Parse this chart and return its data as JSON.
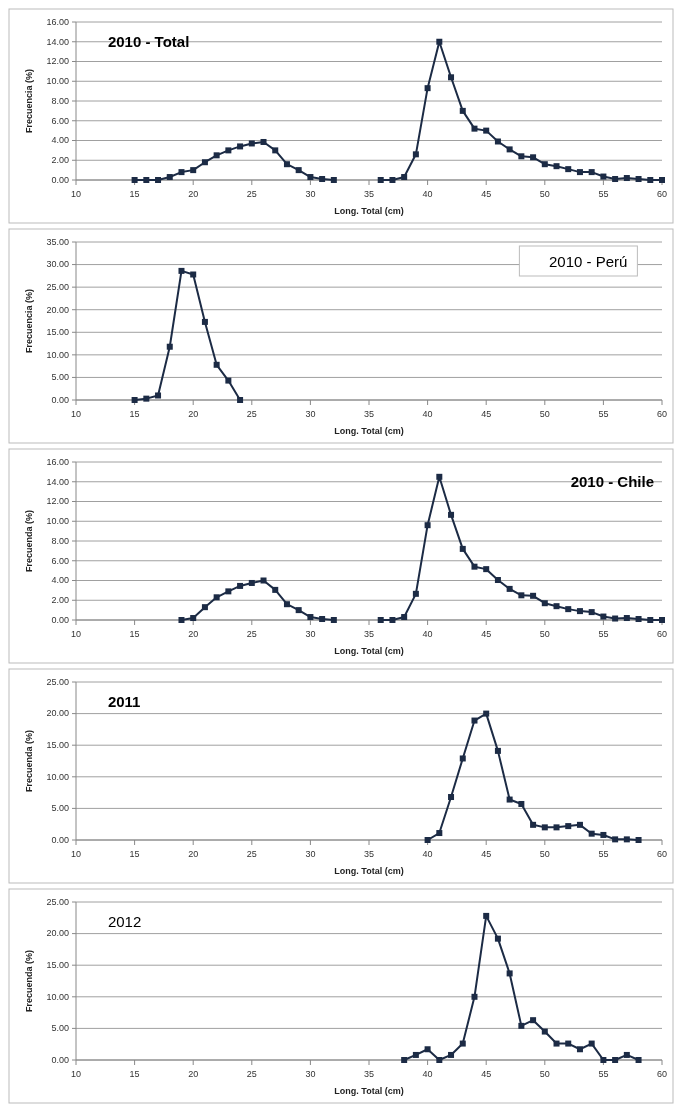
{
  "chart_data": [
    {
      "type": "line",
      "title": "2010 - Total",
      "xlabel": "Long. Total (cm)",
      "ylabel": "Frecuencia (%)",
      "xlim": [
        10,
        60
      ],
      "xticks": [
        10,
        15,
        20,
        25,
        30,
        35,
        40,
        45,
        50,
        55,
        60
      ],
      "ylim": [
        0,
        16
      ],
      "yticks": [
        {
          "value": 0,
          "label": "0.00"
        },
        {
          "value": 2,
          "label": "2.00"
        },
        {
          "value": 4,
          "label": "4.00"
        },
        {
          "value": 6,
          "label": "6.00"
        },
        {
          "value": 8,
          "label": "8.00"
        },
        {
          "value": 10,
          "label": "10.00"
        },
        {
          "value": 12,
          "label": "12.00"
        },
        {
          "value": 14,
          "label": "14.00"
        },
        {
          "value": 16,
          "label": "16.00"
        }
      ],
      "grid": "y",
      "legend": false,
      "marker": "square",
      "line_style": "solid",
      "series": [
        {
          "color": "#1c2b45",
          "x": [
            15,
            16,
            17,
            18,
            19,
            20,
            21,
            22,
            23,
            24,
            25,
            26,
            27,
            28,
            29,
            30,
            31,
            32,
            33,
            34,
            35,
            36,
            37,
            38,
            39,
            40,
            41,
            42,
            43,
            44,
            45,
            46,
            47,
            48,
            49,
            50,
            51,
            52,
            53,
            54,
            55,
            56,
            57,
            58,
            59,
            60
          ],
          "values": [
            0,
            0,
            0,
            0.3,
            0.8,
            1.0,
            1.8,
            2.5,
            3.0,
            3.4,
            3.7,
            3.85,
            3.0,
            1.6,
            1.0,
            0.3,
            0.1,
            0,
            null,
            null,
            null,
            0,
            0,
            0.3,
            2.6,
            9.3,
            14.0,
            10.4,
            7.0,
            5.2,
            5.0,
            3.9,
            3.1,
            2.4,
            2.3,
            1.6,
            1.4,
            1.1,
            0.8,
            0.8,
            0.35,
            0.1,
            0.2,
            0.1,
            0,
            0
          ]
        }
      ]
    },
    {
      "type": "line",
      "title": "2010 - Perú",
      "xlabel": "Long. Total (cm)",
      "ylabel": "Frecuencia (%)",
      "xlim": [
        10,
        60
      ],
      "xticks": [
        10,
        15,
        20,
        25,
        30,
        35,
        40,
        45,
        50,
        55,
        60
      ],
      "ylim": [
        0,
        35
      ],
      "yticks": [
        {
          "value": 0,
          "label": "0.00"
        },
        {
          "value": 5,
          "label": "5.00"
        },
        {
          "value": 10,
          "label": "10.00"
        },
        {
          "value": 15,
          "label": "15.00"
        },
        {
          "value": 20,
          "label": "20.00"
        },
        {
          "value": 25,
          "label": "25.00"
        },
        {
          "value": 30,
          "label": "30.00"
        },
        {
          "value": 35,
          "label": "35.00"
        }
      ],
      "grid": "y",
      "legend": false,
      "marker": "square",
      "line_style": "solid",
      "series": [
        {
          "color": "#1c2b45",
          "x": [
            15,
            16,
            17,
            18,
            19,
            20,
            21,
            22,
            23,
            24
          ],
          "values": [
            0,
            0.3,
            1.0,
            11.8,
            28.6,
            27.8,
            17.3,
            7.8,
            4.3,
            0
          ]
        }
      ]
    },
    {
      "type": "line",
      "title": "2010 - Chile",
      "xlabel": "Long. Total (cm)",
      "ylabel": "Frecuenda (%)",
      "xlim": [
        10,
        60
      ],
      "xticks": [
        10,
        15,
        20,
        25,
        30,
        35,
        40,
        45,
        50,
        55,
        60
      ],
      "ylim": [
        0,
        16
      ],
      "yticks": [
        {
          "value": 0,
          "label": "0.00"
        },
        {
          "value": 2,
          "label": "2.00"
        },
        {
          "value": 4,
          "label": "4.00"
        },
        {
          "value": 6,
          "label": "6.00"
        },
        {
          "value": 8,
          "label": "8.00"
        },
        {
          "value": 10,
          "label": "10.00"
        },
        {
          "value": 12,
          "label": "12.00"
        },
        {
          "value": 14,
          "label": "14.00"
        },
        {
          "value": 16,
          "label": "16.00"
        }
      ],
      "grid": "y",
      "legend": false,
      "marker": "square",
      "line_style": "solid",
      "series": [
        {
          "color": "#1c2b45",
          "x": [
            19,
            20,
            21,
            22,
            23,
            24,
            25,
            26,
            27,
            28,
            29,
            30,
            31,
            32,
            33,
            34,
            35,
            36,
            37,
            38,
            39,
            40,
            41,
            42,
            43,
            44,
            45,
            46,
            47,
            48,
            49,
            50,
            51,
            52,
            53,
            54,
            55,
            56,
            57,
            58,
            59,
            60
          ],
          "values": [
            0,
            0.2,
            1.3,
            2.3,
            2.9,
            3.45,
            3.75,
            4.0,
            3.05,
            1.6,
            1.0,
            0.3,
            0.1,
            0,
            null,
            null,
            null,
            0,
            0,
            0.3,
            2.65,
            9.6,
            14.5,
            10.65,
            7.2,
            5.4,
            5.15,
            4.05,
            3.15,
            2.5,
            2.45,
            1.7,
            1.4,
            1.1,
            0.9,
            0.8,
            0.35,
            0.15,
            0.2,
            0.1,
            0,
            0
          ]
        }
      ]
    },
    {
      "type": "line",
      "title": "2011",
      "xlabel": "Long. Total (cm)",
      "ylabel": "Frecuenda (%)",
      "xlim": [
        10,
        60
      ],
      "xticks": [
        10,
        15,
        20,
        25,
        30,
        35,
        40,
        45,
        50,
        55,
        60
      ],
      "ylim": [
        0,
        25
      ],
      "yticks": [
        {
          "value": 0,
          "label": "0.00"
        },
        {
          "value": 5,
          "label": "5.00"
        },
        {
          "value": 10,
          "label": "10.00"
        },
        {
          "value": 15,
          "label": "15.00"
        },
        {
          "value": 20,
          "label": "20.00"
        },
        {
          "value": 25,
          "label": "25.00"
        }
      ],
      "grid": "y",
      "legend": false,
      "marker": "square",
      "line_style": "solid",
      "series": [
        {
          "color": "#1c2b45",
          "x": [
            40,
            41,
            42,
            43,
            44,
            45,
            46,
            47,
            48,
            49,
            50,
            51,
            52,
            53,
            54,
            55,
            56,
            57,
            58
          ],
          "values": [
            0,
            1.1,
            6.8,
            12.9,
            18.9,
            20.0,
            14.1,
            6.4,
            5.7,
            2.4,
            2.0,
            2.0,
            2.2,
            2.4,
            1.0,
            0.8,
            0.1,
            0.1,
            0
          ]
        }
      ]
    },
    {
      "type": "line",
      "title": "2012",
      "xlabel": "Long. Total (cm)",
      "ylabel": "Frecuenda (%)",
      "xlim": [
        10,
        60
      ],
      "xticks": [
        10,
        15,
        20,
        25,
        30,
        35,
        40,
        45,
        50,
        55,
        60
      ],
      "ylim": [
        0,
        25
      ],
      "yticks": [
        {
          "value": 0,
          "label": "0.00"
        },
        {
          "value": 5,
          "label": "5.00"
        },
        {
          "value": 10,
          "label": "10.00"
        },
        {
          "value": 15,
          "label": "15.00"
        },
        {
          "value": 20,
          "label": "20.00"
        },
        {
          "value": 25,
          "label": "25.00"
        }
      ],
      "grid": "y",
      "legend": false,
      "marker": "square",
      "line_style": "solid",
      "series": [
        {
          "color": "#1c2b45",
          "x": [
            38,
            39,
            40,
            41,
            42,
            43,
            44,
            45,
            46,
            47,
            48,
            49,
            50,
            51,
            52,
            53,
            54,
            55,
            56,
            57,
            58
          ],
          "values": [
            0,
            0.8,
            1.7,
            0,
            0.8,
            2.6,
            10.0,
            22.8,
            19.2,
            13.7,
            5.4,
            6.3,
            4.5,
            2.6,
            2.6,
            1.7,
            2.6,
            0,
            0,
            0.8,
            0
          ]
        }
      ]
    }
  ]
}
